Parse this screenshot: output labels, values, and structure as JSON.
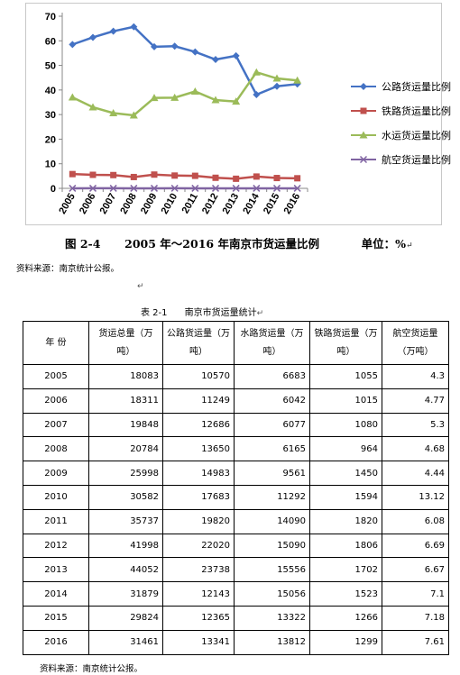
{
  "chart_data": {
    "type": "line",
    "x": [
      "2005",
      "2006",
      "2007",
      "2008",
      "2009",
      "2010",
      "2011",
      "2012",
      "2013",
      "2014",
      "2015",
      "2016"
    ],
    "ylim": [
      0,
      70
    ],
    "yticks": [
      0,
      10,
      20,
      30,
      40,
      50,
      60,
      70
    ],
    "grid": false,
    "legend_position": "right",
    "series": [
      {
        "name": "公路货运量比例",
        "color": "#4472C4",
        "marker": "diamond",
        "values": [
          58.5,
          61.4,
          63.9,
          65.7,
          57.6,
          57.8,
          55.5,
          52.4,
          53.9,
          38.1,
          41.5,
          42.4
        ]
      },
      {
        "name": "铁路货运量比例",
        "color": "#C0504D",
        "marker": "square",
        "values": [
          5.8,
          5.5,
          5.4,
          4.6,
          5.6,
          5.2,
          5.1,
          4.3,
          3.9,
          4.8,
          4.2,
          4.1
        ]
      },
      {
        "name": "水运货运量比例",
        "color": "#9BBB59",
        "marker": "triangle",
        "values": [
          37.0,
          33.0,
          30.6,
          29.7,
          36.8,
          36.9,
          39.4,
          35.9,
          35.3,
          47.2,
          44.7,
          43.9
        ]
      },
      {
        "name": "航空货运量比例",
        "color": "#8064A2",
        "marker": "x",
        "values": [
          0.02,
          0.03,
          0.03,
          0.02,
          0.02,
          0.04,
          0.02,
          0.02,
          0.02,
          0.02,
          0.02,
          0.02
        ]
      }
    ]
  },
  "figure": {
    "number": "图 2-4",
    "title": "2005 年～2016 年南京市货运量比例",
    "unit": "单位：%",
    "mark": "↵"
  },
  "source_note": "资料来源：南京统计公报。",
  "table": {
    "caption": "表 2-1      南京市货运量统计",
    "mark": "↵",
    "headers": [
      "年 份",
      "货运总量（万吨）",
      "公路货运量（万吨）",
      "水路货运量（万吨）",
      "铁路货运量（万吨）",
      "航空货运量（万吨）"
    ],
    "rows": [
      [
        "2005",
        "18083",
        "10570",
        "6683",
        "1055",
        "4.3"
      ],
      [
        "2006",
        "18311",
        "11249",
        "6042",
        "1015",
        "4.77"
      ],
      [
        "2007",
        "19848",
        "12686",
        "6077",
        "1080",
        "5.3"
      ],
      [
        "2008",
        "20784",
        "13650",
        "6165",
        "964",
        "4.68"
      ],
      [
        "2009",
        "25998",
        "14983",
        "9561",
        "1450",
        "4.44"
      ],
      [
        "2010",
        "30582",
        "17683",
        "11292",
        "1594",
        "13.12"
      ],
      [
        "2011",
        "35737",
        "19820",
        "14090",
        "1820",
        "6.08"
      ],
      [
        "2012",
        "41998",
        "22020",
        "15090",
        "1806",
        "6.69"
      ],
      [
        "2013",
        "44052",
        "23738",
        "15556",
        "1702",
        "6.67"
      ],
      [
        "2014",
        "31879",
        "12143",
        "15056",
        "1523",
        "7.1"
      ],
      [
        "2015",
        "29824",
        "12365",
        "13322",
        "1266",
        "7.18"
      ],
      [
        "2016",
        "31461",
        "13341",
        "13812",
        "1299",
        "7.61"
      ]
    ]
  },
  "footer_source": "资料来源：南京统计公报。"
}
